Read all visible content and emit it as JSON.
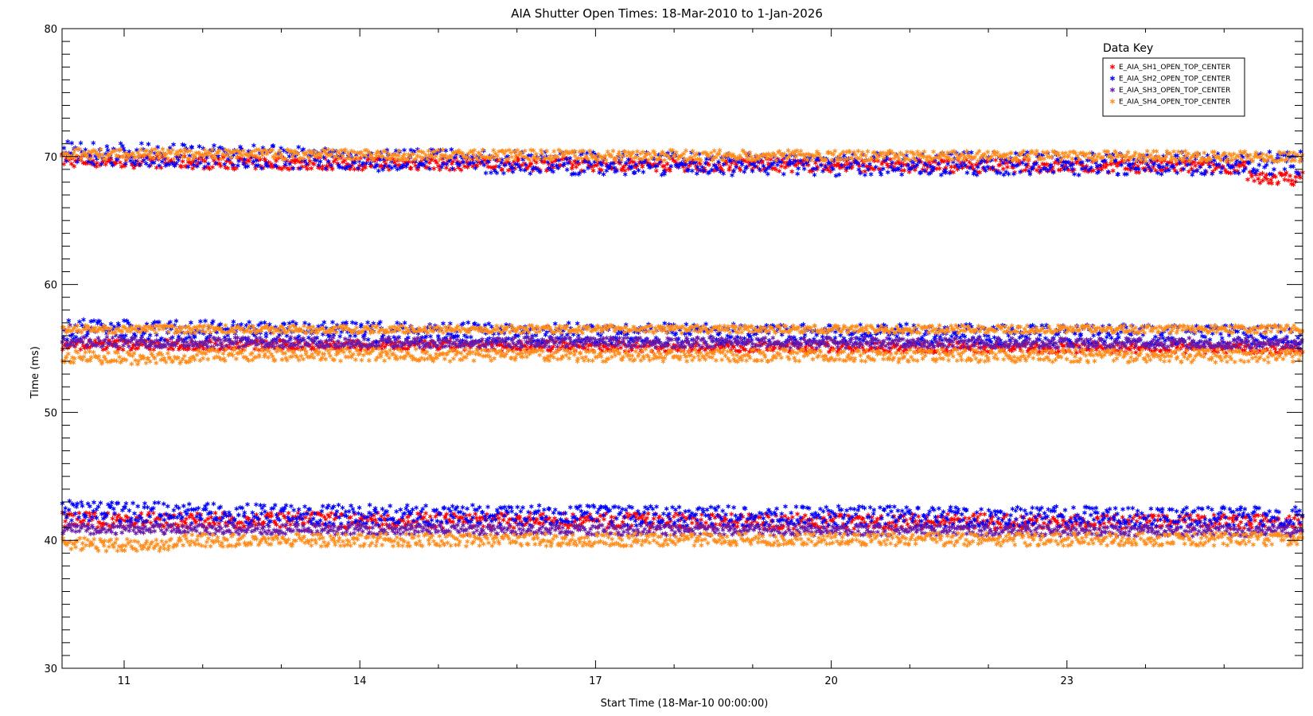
{
  "chart_data": {
    "type": "scatter",
    "title": "AIA Shutter Open Times: 18-Mar-2010 to 1-Jan-2026",
    "xlabel": "Start Time (18-Mar-10 00:00:00)",
    "ylabel": "Time (ms)",
    "x_ticks": [
      {
        "value": 2011,
        "label": "11"
      },
      {
        "value": 2014,
        "label": "14"
      },
      {
        "value": 2017,
        "label": "17"
      },
      {
        "value": 2020,
        "label": "20"
      },
      {
        "value": 2023,
        "label": "23"
      }
    ],
    "xlim": [
      2010.21,
      2026.0
    ],
    "ylim": [
      30,
      80
    ],
    "y_ticks": [
      30,
      40,
      50,
      60,
      70,
      80
    ],
    "grid": false,
    "legend_position": "top-right",
    "legend_title": "Data Key",
    "marker": "asterisk",
    "series": [
      {
        "name": "E_AIA_SH1_OPEN_TOP_CENTER",
        "color": "#ff0000",
        "bands": [
          {
            "segments": [
              [
                2010.21,
                69.7
              ],
              [
                2012.5,
                69.5
              ],
              [
                2016.5,
                69.4
              ],
              [
                2020,
                69.3
              ],
              [
                2025.3,
                69.2
              ],
              [
                2025.3,
                68.3
              ],
              [
                2026.0,
                68.3
              ]
            ],
            "spread": 0.5
          },
          {
            "segments": [
              [
                2010.21,
                55.3
              ],
              [
                2026.0,
                55.0
              ]
            ],
            "spread": 0.4
          },
          {
            "segments": [
              [
                2010.21,
                41.6
              ],
              [
                2026.0,
                41.4
              ]
            ],
            "spread": 0.6
          }
        ]
      },
      {
        "name": "E_AIA_SH2_OPEN_TOP_CENTER",
        "color": "#0000ff",
        "bands": [
          {
            "segments": [
              [
                2010.21,
                70.3
              ],
              [
                2012.5,
                70.0
              ],
              [
                2016.5,
                69.5
              ],
              [
                2020,
                69.4
              ],
              [
                2026.0,
                69.5
              ]
            ],
            "spread": 0.9
          },
          {
            "segments": [
              [
                2010.21,
                56.5
              ],
              [
                2012.8,
                56.3
              ],
              [
                2026.0,
                56.0
              ]
            ],
            "spread": 0.8
          },
          {
            "segments": [
              [
                2010.21,
                42.3
              ],
              [
                2012.8,
                42.0
              ],
              [
                2026.0,
                41.8
              ]
            ],
            "spread": 0.8
          }
        ]
      },
      {
        "name": "E_AIA_SH3_OPEN_TOP_CENTER",
        "color": "#6a1aa8",
        "bands": [
          {
            "segments": [
              [
                2010.21,
                55.5
              ],
              [
                2026.0,
                55.4
              ]
            ],
            "spread": 0.4
          },
          {
            "segments": [
              [
                2010.21,
                40.9
              ],
              [
                2026.0,
                40.7
              ]
            ],
            "spread": 0.4
          }
        ]
      },
      {
        "name": "E_AIA_SH4_OPEN_TOP_CENTER",
        "color": "#ff8c1a",
        "bands": [
          {
            "segments": [
              [
                2010.21,
                70.2
              ],
              [
                2026.0,
                70.0
              ]
            ],
            "spread": 0.4
          },
          {
            "segments": [
              [
                2010.21,
                56.5
              ],
              [
                2026.0,
                56.5
              ]
            ],
            "spread": 0.3
          },
          {
            "segments": [
              [
                2010.21,
                54.3
              ],
              [
                2011.5,
                54.2
              ],
              [
                2012.0,
                54.5
              ],
              [
                2026.0,
                54.4
              ]
            ],
            "spread": 0.5
          },
          {
            "segments": [
              [
                2010.21,
                39.7
              ],
              [
                2011.5,
                39.6
              ],
              [
                2011.8,
                40.0
              ],
              [
                2026.0,
                40.1
              ]
            ],
            "spread": 0.5
          }
        ]
      }
    ]
  }
}
